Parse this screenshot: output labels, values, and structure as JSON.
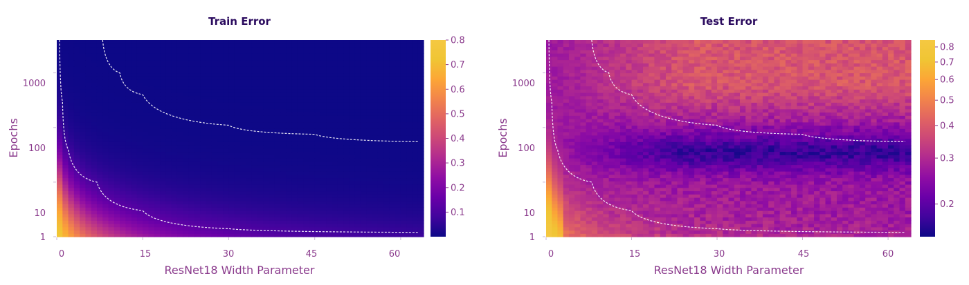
{
  "colormap": {
    "name": "plasma",
    "stops": [
      "#0d0887",
      "#41049d",
      "#6a00a8",
      "#8f0da4",
      "#b12a90",
      "#cc4778",
      "#e16462",
      "#f2844b",
      "#fca636",
      "#f0c534",
      "#f5c842"
    ]
  },
  "chart_data": [
    {
      "type": "heatmap",
      "title": "Train Error",
      "xlabel": "ResNet18 Width Parameter",
      "ylabel": "Epochs",
      "x_range": [
        0,
        64
      ],
      "y_range": [
        1,
        4000
      ],
      "y_scale": "log",
      "x_ticks": [
        "0",
        "15",
        "30",
        "45",
        "60"
      ],
      "y_ticks": [
        "1",
        "10",
        "100",
        "1000"
      ],
      "colorbar": {
        "min": 0.0,
        "max": 0.8,
        "ticks": [
          "0.1",
          "0.2",
          "0.3",
          "0.4",
          "0.5",
          "0.6",
          "0.7",
          "0.8"
        ]
      },
      "contour_lines": [
        {
          "style": "dashed",
          "color": "#ffffff",
          "description_points": [
            [
              8,
              4000
            ],
            [
              11,
              1000
            ],
            [
              15,
              400
            ],
            [
              30,
              110
            ],
            [
              45,
              75
            ],
            [
              63,
              55
            ]
          ]
        },
        {
          "style": "dashed",
          "color": "#ffffff",
          "description_points": [
            [
              0.5,
              4000
            ],
            [
              1,
              300
            ],
            [
              2,
              40
            ],
            [
              7,
              10
            ],
            [
              15,
              3
            ],
            [
              30,
              1.4
            ],
            [
              63,
              1.2
            ]
          ]
        }
      ],
      "grid": false,
      "legend": "colorbar-right"
    },
    {
      "type": "heatmap",
      "title": "Test Error",
      "xlabel": "ResNet18 Width Parameter",
      "ylabel": "Epochs",
      "x_range": [
        0,
        64
      ],
      "y_range": [
        1,
        4000
      ],
      "y_scale": "log",
      "x_ticks": [
        "0",
        "15",
        "30",
        "45",
        "60"
      ],
      "y_ticks": [
        "1",
        "10",
        "100",
        "1000"
      ],
      "colorbar": {
        "min": 0.15,
        "max": 0.85,
        "scale": "log",
        "ticks": [
          "0.2",
          "0.3",
          "0.4",
          "0.5",
          "0.6",
          "0.7",
          "0.8"
        ]
      },
      "contour_lines": [
        {
          "style": "dashed",
          "color": "#ffffff",
          "description_points": [
            [
              8,
              4000
            ],
            [
              11,
              1000
            ],
            [
              15,
              400
            ],
            [
              30,
              110
            ],
            [
              45,
              75
            ],
            [
              63,
              55
            ]
          ]
        },
        {
          "style": "dashed",
          "color": "#ffffff",
          "description_points": [
            [
              0.5,
              4000
            ],
            [
              1,
              300
            ],
            [
              2,
              40
            ],
            [
              8,
              10
            ],
            [
              15,
              3
            ],
            [
              30,
              1.4
            ],
            [
              63,
              1.2
            ]
          ]
        }
      ],
      "grid": false,
      "legend": "colorbar-right"
    }
  ]
}
